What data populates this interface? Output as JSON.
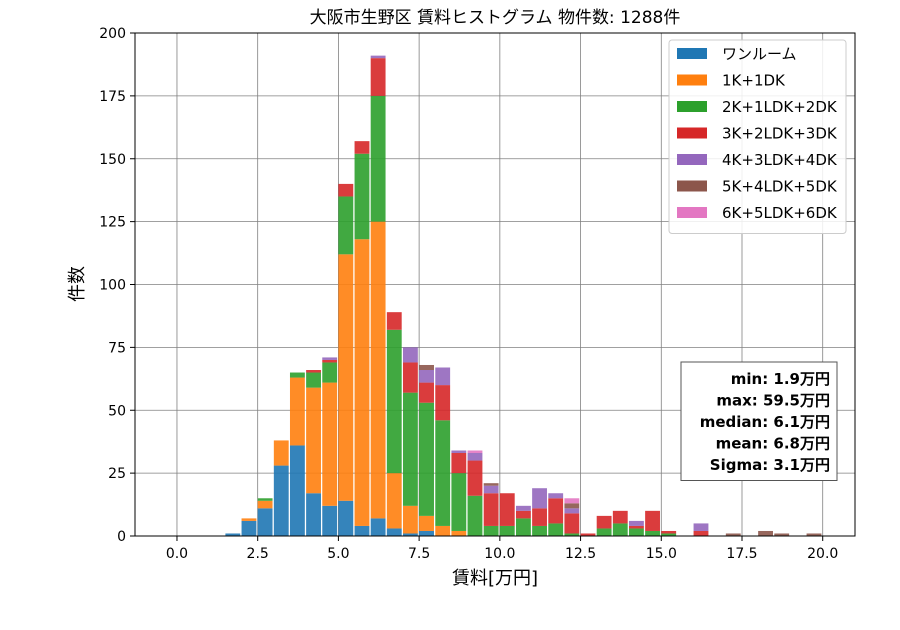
{
  "chart_data": {
    "type": "bar",
    "stacked": true,
    "title": "大阪市生野区 賃料ヒストグラム 物件数: 1288件",
    "xlabel": "賃料[万円]",
    "ylabel": "件数",
    "xlim": [
      -1.3,
      21.0
    ],
    "ylim": [
      0,
      200
    ],
    "xticks": [
      0.0,
      2.5,
      5.0,
      7.5,
      10.0,
      12.5,
      15.0,
      17.5,
      20.0
    ],
    "xtick_labels": [
      "0.0",
      "2.5",
      "5.0",
      "7.5",
      "10.0",
      "12.5",
      "15.0",
      "17.5",
      "20.0"
    ],
    "yticks": [
      0,
      25,
      50,
      75,
      100,
      125,
      150,
      175,
      200
    ],
    "ytick_labels": [
      "0",
      "25",
      "50",
      "75",
      "100",
      "125",
      "150",
      "175",
      "200"
    ],
    "grid": true,
    "legend_position": "top-right",
    "bin_width": 0.5,
    "bin_left_edges": [
      1.5,
      2.0,
      2.5,
      3.0,
      3.5,
      4.0,
      4.5,
      5.0,
      5.5,
      6.0,
      6.5,
      7.0,
      7.5,
      8.0,
      8.5,
      9.0,
      9.5,
      10.0,
      10.5,
      11.0,
      11.5,
      12.0,
      12.5,
      13.0,
      13.5,
      14.0,
      14.5,
      15.0,
      15.5,
      16.0,
      16.5,
      17.0,
      17.5,
      18.0,
      18.5,
      19.0,
      19.5
    ],
    "series": [
      {
        "name": "ワンルーム",
        "color": "#1f77b4",
        "values": [
          1,
          6,
          11,
          28,
          36,
          17,
          12,
          14,
          4,
          7,
          3,
          1,
          2,
          0,
          0,
          0,
          0,
          0,
          0,
          0,
          0,
          0,
          0,
          0,
          0,
          0,
          0,
          0,
          0,
          0,
          0,
          0,
          0,
          0,
          0,
          0,
          0
        ]
      },
      {
        "name": "1K+1DK",
        "color": "#ff7f0e",
        "values": [
          0,
          1,
          3,
          10,
          27,
          42,
          49,
          98,
          114,
          118,
          22,
          11,
          6,
          4,
          2,
          0,
          0,
          0,
          0,
          0,
          0,
          0,
          0,
          0,
          0,
          0,
          0,
          0,
          0,
          0,
          0,
          0,
          0,
          0,
          0,
          0,
          0
        ]
      },
      {
        "name": "2K+1LDK+2DK",
        "color": "#2ca02c",
        "values": [
          0,
          0,
          1,
          0,
          2,
          6,
          8,
          23,
          34,
          50,
          57,
          45,
          45,
          42,
          23,
          16,
          4,
          4,
          7,
          4,
          5,
          1,
          0,
          3,
          5,
          3,
          2,
          1,
          0,
          0,
          0,
          0,
          0,
          0,
          0,
          0,
          0
        ]
      },
      {
        "name": "3K+2LDK+3DK",
        "color": "#d62728",
        "values": [
          0,
          0,
          0,
          0,
          0,
          1,
          1,
          5,
          5,
          15,
          7,
          12,
          8,
          14,
          8,
          14,
          13,
          13,
          3,
          7,
          10,
          8,
          1,
          5,
          5,
          1,
          8,
          1,
          0,
          2,
          0,
          0,
          0,
          0,
          0,
          0,
          0
        ]
      },
      {
        "name": "4K+3LDK+4DK",
        "color": "#9467bd",
        "values": [
          0,
          0,
          0,
          0,
          0,
          0,
          1,
          0,
          0,
          1,
          0,
          6,
          5,
          7,
          1,
          3,
          3,
          0,
          2,
          8,
          2,
          2,
          0,
          0,
          0,
          2,
          0,
          0,
          0,
          3,
          0,
          0,
          0,
          0,
          0,
          0,
          0
        ]
      },
      {
        "name": "5K+4LDK+5DK",
        "color": "#8c564b",
        "values": [
          0,
          0,
          0,
          0,
          0,
          0,
          0,
          0,
          0,
          0,
          0,
          0,
          2,
          0,
          0,
          0,
          1,
          0,
          0,
          0,
          0,
          2,
          0,
          0,
          0,
          0,
          0,
          0,
          0,
          0,
          0,
          1,
          0,
          2,
          1,
          0,
          1
        ]
      },
      {
        "name": "6K+5LDK+6DK",
        "color": "#e377c2",
        "values": [
          0,
          0,
          0,
          0,
          0,
          0,
          0,
          0,
          0,
          0,
          0,
          0,
          0,
          0,
          0,
          1,
          0,
          0,
          0,
          0,
          0,
          2,
          0,
          0,
          0,
          0,
          0,
          0,
          0,
          0,
          0,
          0,
          0,
          0,
          0,
          0,
          0
        ]
      }
    ],
    "stats": [
      "min: 1.9万円",
      "max: 59.5万円",
      "median: 6.1万円",
      "mean: 6.8万円",
      "Sigma: 3.1万円"
    ]
  }
}
